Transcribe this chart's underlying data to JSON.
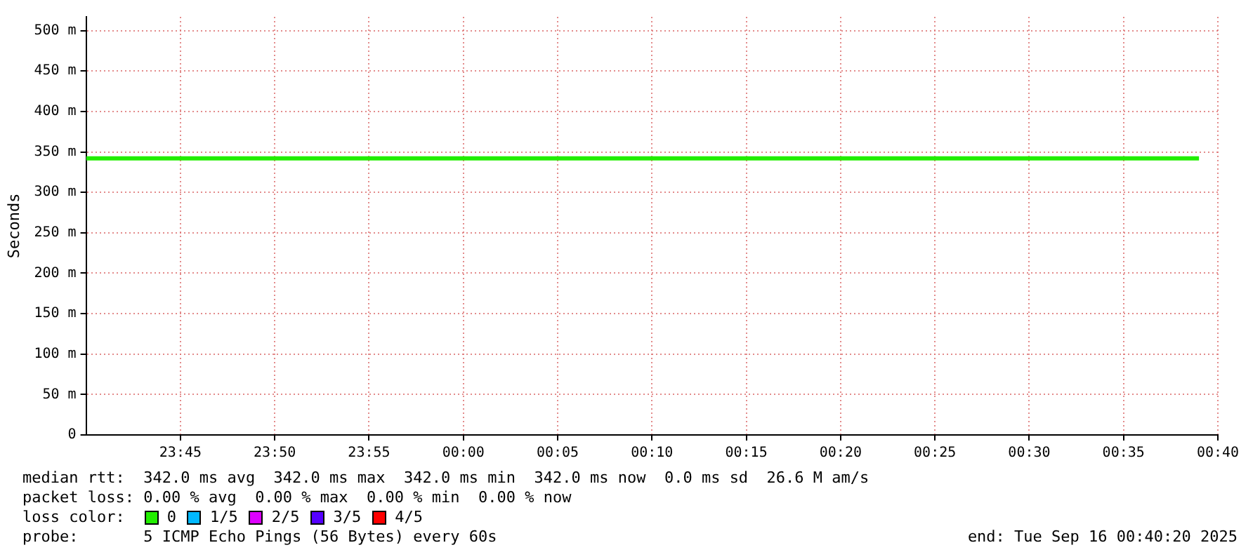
{
  "chart_data": {
    "type": "line",
    "ylabel": "Seconds",
    "legend_title": "loss color:",
    "legend": "bottom",
    "grid": true,
    "marker": "none",
    "line_style": "solid",
    "x": [
      "2025-09-15T23:40",
      "2025-09-16T00:39"
    ],
    "xlim": [
      "2025-09-15T23:40",
      "2025-09-16T00:40"
    ],
    "xticks": [
      {
        "value": "2025-09-15T23:45",
        "label": "23:45"
      },
      {
        "value": "2025-09-15T23:50",
        "label": "23:50"
      },
      {
        "value": "2025-09-15T23:55",
        "label": "23:55"
      },
      {
        "value": "2025-09-16T00:00",
        "label": "00:00"
      },
      {
        "value": "2025-09-16T00:05",
        "label": "00:05"
      },
      {
        "value": "2025-09-16T00:10",
        "label": "00:10"
      },
      {
        "value": "2025-09-16T00:15",
        "label": "00:15"
      },
      {
        "value": "2025-09-16T00:20",
        "label": "00:20"
      },
      {
        "value": "2025-09-16T00:25",
        "label": "00:25"
      },
      {
        "value": "2025-09-16T00:30",
        "label": "00:30"
      },
      {
        "value": "2025-09-16T00:35",
        "label": "00:35"
      },
      {
        "value": "2025-09-16T00:40",
        "label": "00:40"
      }
    ],
    "ylim": [
      0,
      517
    ],
    "yticks": [
      0,
      {
        "value": 50,
        "label": "50 m"
      },
      {
        "value": 100,
        "label": "100 m"
      },
      {
        "value": 150,
        "label": "150 m"
      },
      {
        "value": 200,
        "label": "200 m"
      },
      {
        "value": 250,
        "label": "250 m"
      },
      {
        "value": 300,
        "label": "300 m"
      },
      {
        "value": 350,
        "label": "350 m"
      },
      {
        "value": 400,
        "label": "400 m"
      },
      {
        "value": 450,
        "label": "450 m"
      },
      {
        "value": 500,
        "label": "500 m"
      }
    ],
    "series": [
      {
        "name": "0",
        "color": "#22ee00",
        "values": [
          342,
          342
        ]
      },
      {
        "name": "1/5",
        "color": "#00b8ff",
        "values": [
          null,
          null
        ]
      },
      {
        "name": "2/5",
        "color": "#dd00ff",
        "values": [
          null,
          null
        ]
      },
      {
        "name": "3/5",
        "color": "#5500ff",
        "values": [
          null,
          null
        ]
      },
      {
        "name": "4/5",
        "color": "#ff0000",
        "values": [
          null,
          null
        ]
      }
    ],
    "annotations": [
      "median rtt:  342.0 ms avg  342.0 ms max  342.0 ms min  342.0 ms now  0.0 ms sd  26.6 M am/s",
      "packet loss: 0.00 % avg  0.00 % max  0.00 % min  0.00 % now",
      "probe:       5 ICMP Echo Pings (56 Bytes) every 60s",
      "end: Tue Sep 16 00:40:20 2025"
    ]
  }
}
